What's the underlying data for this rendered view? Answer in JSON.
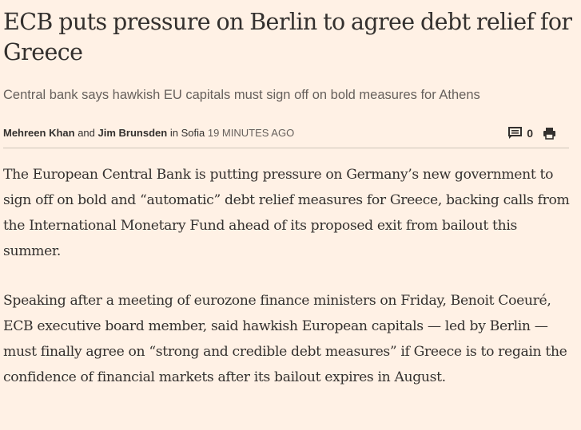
{
  "article": {
    "headline": "ECB puts pressure on Berlin to agree debt relief for Greece",
    "standfirst": "Central bank says hawkish EU capitals must sign off on bold measures for Athens",
    "byline": {
      "author_1": "Mehreen Khan",
      "joiner": "and",
      "author_2": "Jim Brunsden",
      "location": "in Sofia",
      "timestamp": "19 MINUTES AGO"
    },
    "tools": {
      "comments_icon": "comment-icon",
      "comment_count": "0",
      "print_icon": "print-icon"
    },
    "paragraphs": [
      "The European Central Bank is putting pressure on Germany’s new government to sign off on bold and “automatic” debt relief measures for Greece, backing calls from the International Monetary Fund ahead of its proposed exit from bailout this summer.",
      "Speaking after a meeting of eurozone finance ministers on Friday, Benoit Coeuré, ECB executive board member, said hawkish European capitals — led by Berlin — must finally agree on “strong and credible debt measures” if Greece is to regain the confidence of financial markets after its bailout expires in August."
    ]
  },
  "colors": {
    "background": "#fff1e5",
    "text": "#33302e",
    "muted": "#66605c",
    "rule": "#cec6b9"
  }
}
